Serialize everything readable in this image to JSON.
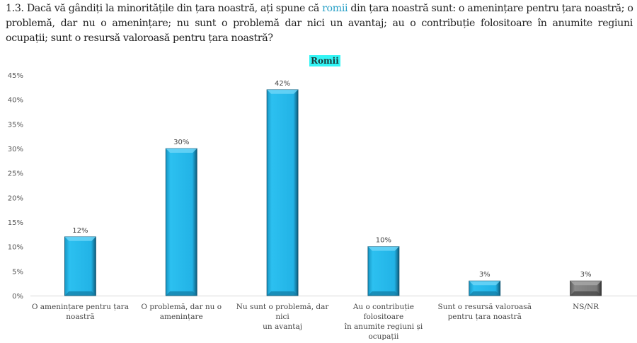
{
  "question": {
    "prefix": "1.3. Dacă vă gândiți la minoritățile din țara noastră, ați spune că ",
    "highlight": "romii",
    "suffix_line1": " din țara noastră sunt: o amenințare pentru țara noastră; o",
    "line2": "problemă, dar nu o amenințare; nu sunt o problemă dar nici un avantaj; au o contribuție folositoare în anumite regiuni și",
    "line3": "ocupații; sunt o resursă valoroasă pentru țara noastră?"
  },
  "chart_data": {
    "type": "bar",
    "title": "Romii",
    "xlabel": "",
    "ylabel": "",
    "ylim": [
      0,
      45
    ],
    "yticks": [
      "0%",
      "5%",
      "10%",
      "15%",
      "20%",
      "25%",
      "30%",
      "35%",
      "40%",
      "45%"
    ],
    "categories": [
      [
        "O amenințare pentru țara",
        "noastră"
      ],
      [
        "O problemă, dar nu o",
        "amenințare"
      ],
      [
        "Nu sunt o problemă, dar nici",
        "un avantaj"
      ],
      [
        "Au o contribuție folositoare",
        "în anumite regiuni și ocupații"
      ],
      [
        "Sunt o resursă valoroasă",
        "pentru țara noastră"
      ],
      [
        "NS/NR"
      ]
    ],
    "values": [
      12,
      30,
      42,
      10,
      3,
      3
    ],
    "data_labels": [
      "12%",
      "30%",
      "42%",
      "10%",
      "3%",
      "3%"
    ],
    "colors": [
      "#1eb6ea",
      "#1eb6ea",
      "#1eb6ea",
      "#1eb6ea",
      "#1eb6ea",
      "#7f7f7f"
    ],
    "grid": false,
    "legend": "none"
  }
}
